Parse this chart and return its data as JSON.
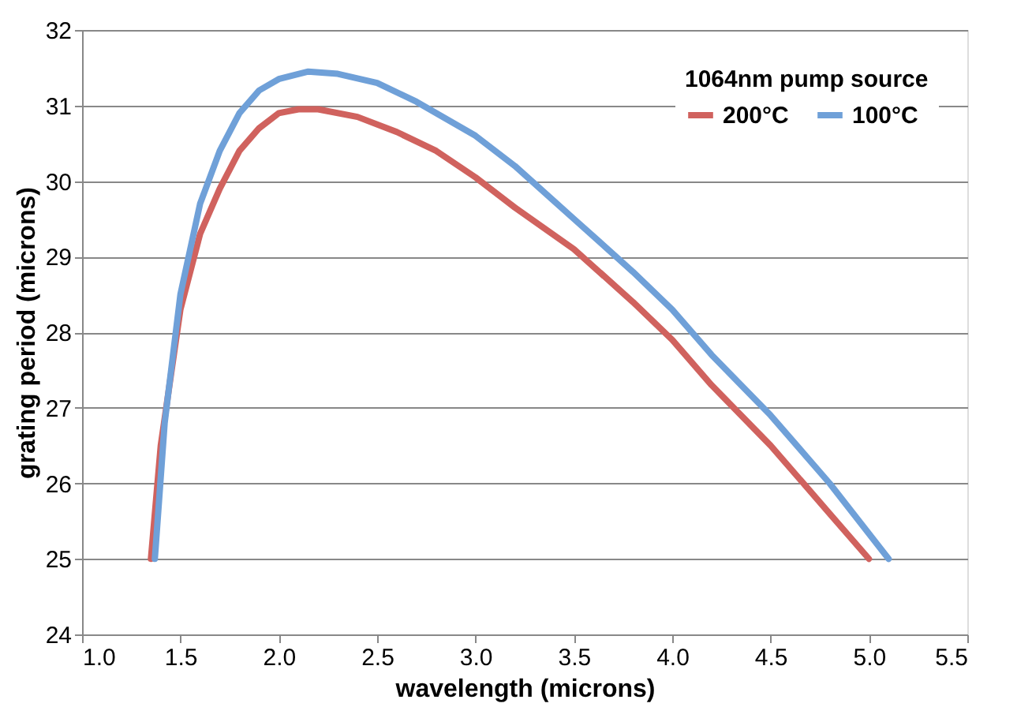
{
  "chart_data": {
    "type": "line",
    "xlabel": "wavelength (microns)",
    "ylabel": "grating period (microns)",
    "legend_title": "1064nm pump source",
    "xlim": [
      1.0,
      5.5
    ],
    "xticks": [
      {
        "value": 1.0,
        "label": "1.0"
      },
      1.5,
      {
        "value": 2.0,
        "label": "2.0"
      },
      2.5,
      {
        "value": 3.0,
        "label": "3.0"
      },
      3.5,
      {
        "value": 4.0,
        "label": "4.0"
      },
      4.5,
      {
        "value": 5.0,
        "label": "5.0"
      },
      5.5
    ],
    "ylim": [
      24,
      32
    ],
    "yticks": [
      24,
      25,
      26,
      27,
      28,
      29,
      30,
      31,
      32
    ],
    "grid": "y",
    "legend": "top right",
    "marker": "none",
    "line_style": "solid",
    "series": [
      {
        "name": "200°C",
        "color": "#d0625e",
        "x": [
          1.35,
          1.4,
          1.5,
          1.6,
          1.7,
          1.8,
          1.9,
          2.0,
          2.1,
          2.2,
          2.4,
          2.6,
          2.8,
          3.0,
          3.2,
          3.5,
          3.8,
          4.0,
          4.2,
          4.5,
          4.8,
          5.0
        ],
        "values": [
          25,
          26.5,
          28.3,
          29.3,
          29.9,
          30.4,
          30.7,
          30.9,
          30.95,
          30.95,
          30.85,
          30.65,
          30.4,
          30.05,
          29.65,
          29.1,
          28.4,
          27.9,
          27.3,
          26.5,
          25.6,
          25.0
        ]
      },
      {
        "name": "100°C",
        "color": "#6fa0d8",
        "x": [
          1.37,
          1.42,
          1.5,
          1.6,
          1.7,
          1.8,
          1.9,
          2.0,
          2.15,
          2.3,
          2.5,
          2.7,
          3.0,
          3.2,
          3.5,
          3.8,
          4.0,
          4.2,
          4.5,
          4.8,
          5.1
        ],
        "values": [
          25,
          26.8,
          28.5,
          29.7,
          30.4,
          30.9,
          31.2,
          31.35,
          31.45,
          31.42,
          31.3,
          31.05,
          30.6,
          30.2,
          29.5,
          28.8,
          28.3,
          27.7,
          26.9,
          26.0,
          25.0
        ]
      }
    ]
  }
}
